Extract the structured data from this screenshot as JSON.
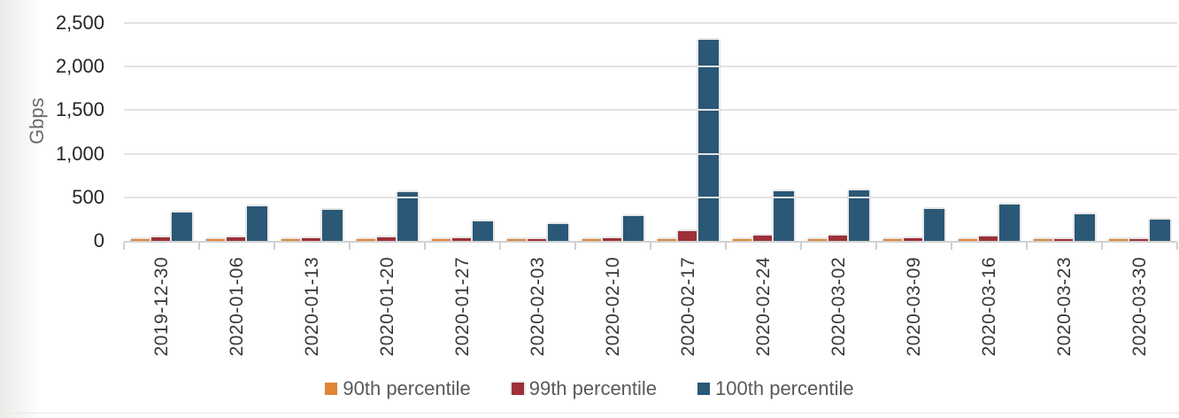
{
  "chart_data": {
    "type": "bar",
    "title": "",
    "xlabel": "",
    "ylabel": "Gbps",
    "ylim": [
      0,
      2500
    ],
    "yticks": [
      0,
      500,
      1000,
      1500,
      2000,
      2500
    ],
    "ytick_labels": [
      "0",
      "500",
      "1,000",
      "1,500",
      "2,000",
      "2,500"
    ],
    "grid": true,
    "legend_position": "bottom",
    "categories": [
      "2019-12-30",
      "2020-01-06",
      "2020-01-13",
      "2020-01-20",
      "2020-01-27",
      "2020-02-03",
      "2020-02-10",
      "2020-02-17",
      "2020-02-24",
      "2020-03-02",
      "2020-03-09",
      "2020-03-16",
      "2020-03-23",
      "2020-03-30"
    ],
    "series": [
      {
        "name": "90th percentile",
        "color": "#E08538",
        "values": [
          20,
          20,
          15,
          20,
          15,
          15,
          15,
          25,
          20,
          20,
          15,
          20,
          15,
          15
        ]
      },
      {
        "name": "99th percentile",
        "color": "#9E3039",
        "values": [
          40,
          45,
          30,
          40,
          28,
          25,
          30,
          115,
          60,
          65,
          32,
          55,
          25,
          15
        ]
      },
      {
        "name": "100th percentile",
        "color": "#2B5876",
        "values": [
          330,
          400,
          360,
          555,
          220,
          195,
          280,
          2305,
          570,
          580,
          365,
          415,
          300,
          245
        ]
      }
    ]
  },
  "ui": {
    "y_axis_title": "Gbps"
  }
}
